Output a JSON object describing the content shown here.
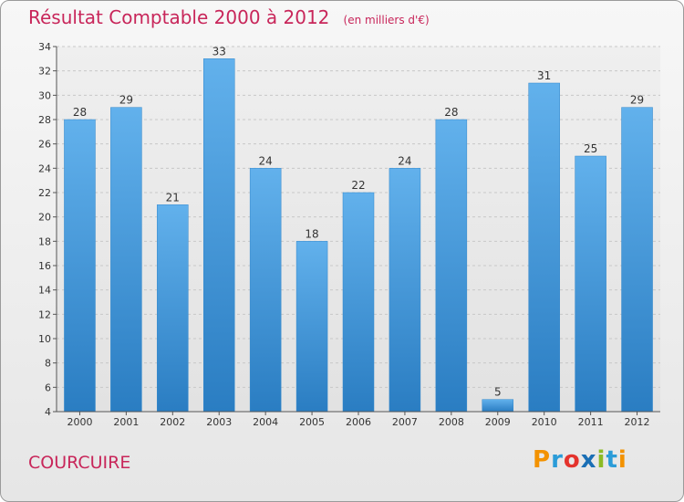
{
  "chart_data": {
    "type": "bar",
    "title": "Résultat Comptable 2000 à 2012",
    "subtitle": "(en milliers d'€)",
    "categories": [
      "2000",
      "2001",
      "2002",
      "2003",
      "2004",
      "2005",
      "2006",
      "2007",
      "2008",
      "2009",
      "2010",
      "2011",
      "2012"
    ],
    "values": [
      28,
      29,
      21,
      33,
      24,
      18,
      22,
      24,
      28,
      5,
      31,
      25,
      29
    ],
    "xlabel": "",
    "ylabel": "",
    "ylim": [
      4,
      34
    ],
    "yticks": [
      4,
      6,
      8,
      10,
      12,
      14,
      16,
      18,
      20,
      22,
      24,
      26,
      28,
      30,
      32,
      34
    ],
    "grid": true,
    "bar_color": "#4a9de0"
  },
  "footer": {
    "place": "COURCUIRE",
    "brand": [
      "P",
      "r",
      "o",
      "x",
      "i",
      "t",
      "i"
    ]
  },
  "colors": {
    "title": "#c8265a",
    "brand": [
      "#f39200",
      "#2b9cd8",
      "#e4332d",
      "#1a6fb5",
      "#8cbb24",
      "#2b9cd8",
      "#f39200"
    ]
  }
}
